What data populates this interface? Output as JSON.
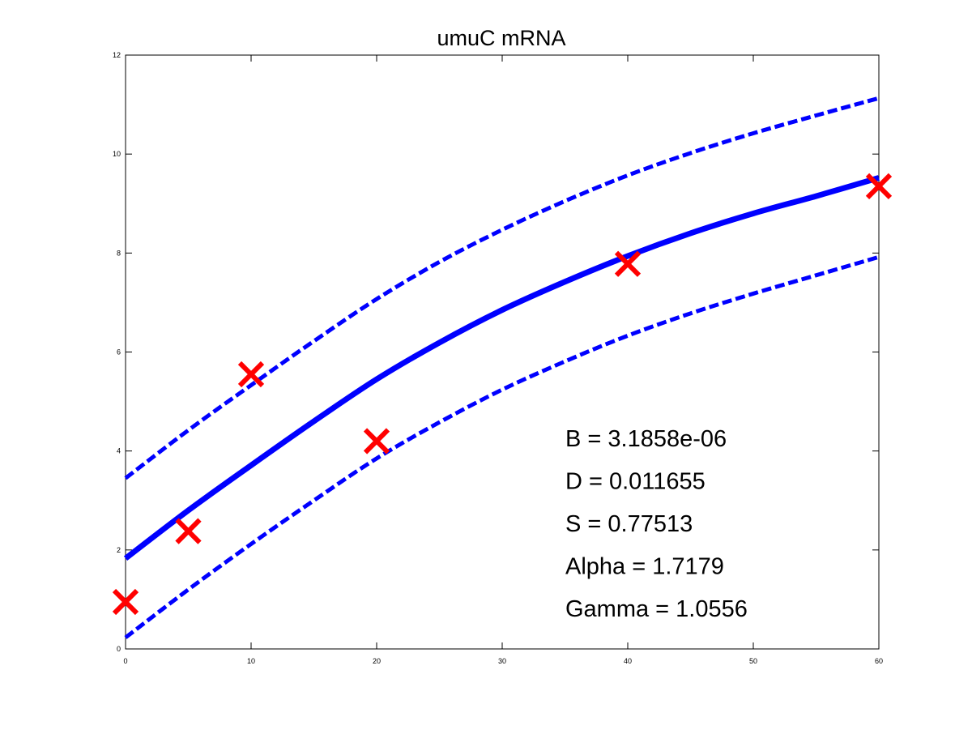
{
  "chart_data": {
    "type": "line",
    "title": "umuC mRNA",
    "xlabel": "",
    "ylabel": "",
    "xlim": [
      0,
      60
    ],
    "ylim": [
      0,
      12
    ],
    "xticks": [
      0,
      10,
      20,
      30,
      40,
      50,
      60
    ],
    "yticks": [
      0,
      2,
      4,
      6,
      8,
      10,
      12
    ],
    "grid": false,
    "colors": {
      "fit": "#0000ff",
      "data": "#ff0000",
      "axis": "#000000"
    },
    "series": [
      {
        "role": "fit",
        "style": "solid",
        "x": [
          0,
          5,
          10,
          15,
          20,
          25,
          30,
          35,
          40,
          45,
          50,
          55,
          60
        ],
        "y": [
          1.83,
          2.8,
          3.71,
          4.6,
          5.45,
          6.19,
          6.85,
          7.42,
          7.94,
          8.4,
          8.8,
          9.15,
          9.52
        ]
      },
      {
        "role": "upper-bound",
        "style": "dashed",
        "x": [
          0,
          5,
          10,
          15,
          20,
          25,
          30,
          35,
          40,
          45,
          50,
          55,
          60
        ],
        "y": [
          3.45,
          4.42,
          5.33,
          6.22,
          7.07,
          7.82,
          8.47,
          9.05,
          9.57,
          10.02,
          10.42,
          10.78,
          11.13
        ]
      },
      {
        "role": "lower-bound",
        "style": "dashed",
        "x": [
          0,
          5,
          10,
          15,
          20,
          25,
          30,
          35,
          40,
          45,
          50,
          55,
          60
        ],
        "y": [
          0.23,
          1.2,
          2.12,
          3.0,
          3.85,
          4.58,
          5.24,
          5.81,
          6.33,
          6.78,
          7.18,
          7.55,
          7.92
        ]
      },
      {
        "role": "data",
        "style": "x-marker",
        "x": [
          0,
          5,
          10,
          20,
          40,
          60
        ],
        "y": [
          0.95,
          2.38,
          5.55,
          4.2,
          7.78,
          9.35
        ]
      }
    ],
    "annotations": [
      "B = 3.1858e-06",
      "D = 0.011655",
      "S = 0.77513",
      "Alpha = 1.7179",
      "Gamma = 1.0556"
    ]
  }
}
